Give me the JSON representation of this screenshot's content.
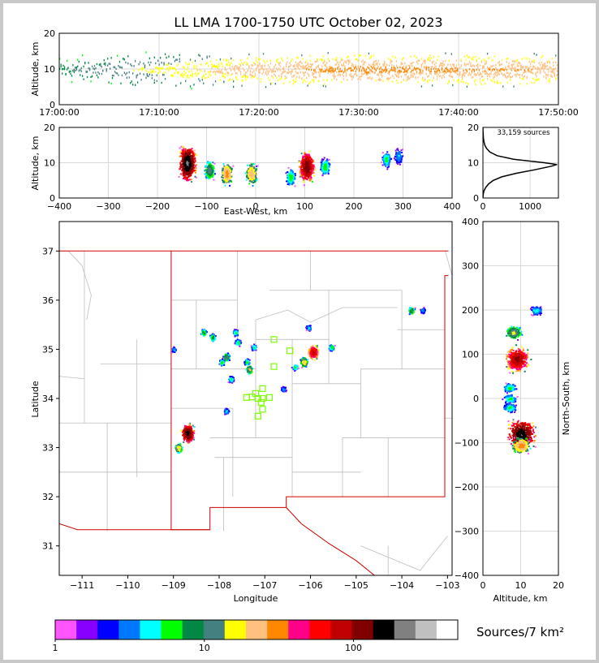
{
  "chart_data": [
    {
      "type": "scatter",
      "panel": "time-altitude",
      "title": "LL LMA 1700-1750 UTC October 02, 2023",
      "ylabel": "Altitude, km",
      "x_ticks": [
        "17:00:00",
        "17:10:00",
        "17:20:00",
        "17:30:00",
        "17:40:00",
        "17:50:00"
      ],
      "y_ticks": [
        0,
        10,
        20
      ],
      "ylim": [
        0,
        20
      ],
      "xlim_minutes": [
        0,
        50
      ],
      "series": [
        {
          "minutes": [
            0,
            10,
            20,
            30,
            40,
            50
          ],
          "altitude_center_km": [
            10,
            10,
            10,
            10,
            10,
            10
          ],
          "density": [
            0.25,
            0.45,
            0.7,
            0.85,
            0.8,
            0.75
          ]
        }
      ]
    },
    {
      "type": "heatmap",
      "panel": "east-west-altitude",
      "xlabel": "East-West, km",
      "ylabel": "Altitude, km",
      "x_ticks": [
        -400,
        -300,
        -200,
        -100,
        0,
        100,
        200,
        300,
        400
      ],
      "y_ticks": [
        0,
        10,
        20
      ],
      "xlim": [
        -400,
        400
      ],
      "ylim": [
        0,
        20
      ],
      "clusters": [
        {
          "x_km": -140,
          "alt_km": 10,
          "intensity": 180
        },
        {
          "x_km": -95,
          "alt_km": 8,
          "intensity": 12
        },
        {
          "x_km": -60,
          "alt_km": 7,
          "intensity": 30
        },
        {
          "x_km": -10,
          "alt_km": 7,
          "intensity": 25
        },
        {
          "x_km": 70,
          "alt_km": 6,
          "intensity": 6
        },
        {
          "x_km": 103,
          "alt_km": 9,
          "intensity": 120
        },
        {
          "x_km": 140,
          "alt_km": 9,
          "intensity": 6
        },
        {
          "x_km": 265,
          "alt_km": 11,
          "intensity": 5
        },
        {
          "x_km": 290,
          "alt_km": 12,
          "intensity": 3
        }
      ]
    },
    {
      "type": "line",
      "panel": "altitude-histogram",
      "annotation": "33,159 sources",
      "x_ticks": [
        0,
        1000
      ],
      "y_ticks": [
        0,
        10,
        20
      ],
      "xlim": [
        0,
        1600
      ],
      "ylim": [
        0,
        20
      ],
      "altitude_km": [
        0,
        1,
        2,
        3,
        4,
        5,
        6,
        7,
        8,
        9,
        9.5,
        10,
        11,
        12,
        13,
        14,
        15,
        16,
        17,
        18,
        19,
        20
      ],
      "count": [
        0,
        5,
        20,
        60,
        120,
        220,
        400,
        700,
        1100,
        1450,
        1570,
        1300,
        650,
        300,
        150,
        80,
        40,
        20,
        10,
        5,
        2,
        0
      ]
    },
    {
      "type": "heatmap",
      "panel": "plan-view",
      "xlabel": "Longitude",
      "ylabel": "Latitude",
      "x_ticks": [
        -111,
        -110,
        -109,
        -108,
        -107,
        -106,
        -105,
        -104,
        -103
      ],
      "y_ticks": [
        31,
        32,
        33,
        34,
        35,
        36,
        37
      ],
      "xlim": [
        -111.5,
        -102.9
      ],
      "ylim": [
        30.4,
        37.6
      ],
      "clusters": [
        {
          "lon": -108.7,
          "lat": 33.3,
          "intensity": 150
        },
        {
          "lon": -108.9,
          "lat": 33.0,
          "intensity": 20
        },
        {
          "lon": -108.35,
          "lat": 35.35,
          "intensity": 8
        },
        {
          "lon": -108.15,
          "lat": 35.25,
          "intensity": 8
        },
        {
          "lon": -107.65,
          "lat": 35.35,
          "intensity": 5
        },
        {
          "lon": -107.85,
          "lat": 34.85,
          "intensity": 12
        },
        {
          "lon": -107.95,
          "lat": 34.75,
          "intensity": 6
        },
        {
          "lon": -107.6,
          "lat": 35.15,
          "intensity": 6
        },
        {
          "lon": -107.25,
          "lat": 35.05,
          "intensity": 5
        },
        {
          "lon": -107.75,
          "lat": 34.4,
          "intensity": 5
        },
        {
          "lon": -107.35,
          "lat": 34.6,
          "intensity": 15
        },
        {
          "lon": -107.4,
          "lat": 34.75,
          "intensity": 6
        },
        {
          "lon": -107.85,
          "lat": 33.75,
          "intensity": 4
        },
        {
          "lon": -105.95,
          "lat": 34.95,
          "intensity": 80
        },
        {
          "lon": -106.15,
          "lat": 34.75,
          "intensity": 20
        },
        {
          "lon": -106.35,
          "lat": 34.65,
          "intensity": 6
        },
        {
          "lon": -105.55,
          "lat": 35.05,
          "intensity": 6
        },
        {
          "lon": -106.05,
          "lat": 35.45,
          "intensity": 4
        },
        {
          "lon": -103.8,
          "lat": 35.8,
          "intensity": 10
        },
        {
          "lon": -103.55,
          "lat": 35.8,
          "intensity": 3
        },
        {
          "lon": -106.6,
          "lat": 34.2,
          "intensity": 3
        },
        {
          "lon": -109.0,
          "lat": 35.0,
          "intensity": 3
        }
      ],
      "stations": [
        {
          "lon": -106.8,
          "lat": 35.2
        },
        {
          "lon": -106.45,
          "lat": 34.97
        },
        {
          "lon": -106.8,
          "lat": 34.65
        },
        {
          "lon": -107.2,
          "lat": 34.1
        },
        {
          "lon": -107.05,
          "lat": 34.2
        },
        {
          "lon": -107.28,
          "lat": 34.03
        },
        {
          "lon": -107.15,
          "lat": 34.0
        },
        {
          "lon": -107.05,
          "lat": 34.0
        },
        {
          "lon": -106.9,
          "lat": 34.02
        },
        {
          "lon": -107.4,
          "lat": 34.02
        },
        {
          "lon": -107.08,
          "lat": 33.92
        },
        {
          "lon": -107.05,
          "lat": 33.78
        },
        {
          "lon": -107.15,
          "lat": 33.64
        }
      ]
    },
    {
      "type": "heatmap",
      "panel": "altitude-north-south",
      "xlabel": "Altitude, km",
      "ylabel": "North-South, km",
      "x_ticks": [
        0,
        10,
        20
      ],
      "y_ticks": [
        -400,
        -300,
        -200,
        -100,
        0,
        100,
        200,
        300,
        400
      ],
      "xlim": [
        0,
        20
      ],
      "ylim": [
        -400,
        400
      ],
      "clusters": [
        {
          "alt_km": 9,
          "ns_km": 90,
          "intensity": 100
        },
        {
          "alt_km": 8,
          "ns_km": 150,
          "intensity": 15
        },
        {
          "alt_km": 14,
          "ns_km": 200,
          "intensity": 4
        },
        {
          "alt_km": 7,
          "ns_km": 25,
          "intensity": 5
        },
        {
          "alt_km": 7,
          "ns_km": 0,
          "intensity": 5
        },
        {
          "alt_km": 7,
          "ns_km": -20,
          "intensity": 5
        },
        {
          "alt_km": 10,
          "ns_km": -80,
          "intensity": 160
        },
        {
          "alt_km": 10,
          "ns_km": -105,
          "intensity": 30
        }
      ]
    }
  ],
  "colorbar": {
    "label": "Sources/7 km²",
    "tick_labels": [
      "1",
      "10",
      "100"
    ],
    "colors": [
      "#ff55ff",
      "#8800ff",
      "#0000ff",
      "#0077ff",
      "#00ffff",
      "#00ff00",
      "#008844",
      "#448080",
      "#ffff00",
      "#ffc080",
      "#ff8800",
      "#ff0088",
      "#ff0000",
      "#c00000",
      "#800000",
      "#000000",
      "#808080",
      "#c0c0c0",
      "#ffffff"
    ]
  }
}
